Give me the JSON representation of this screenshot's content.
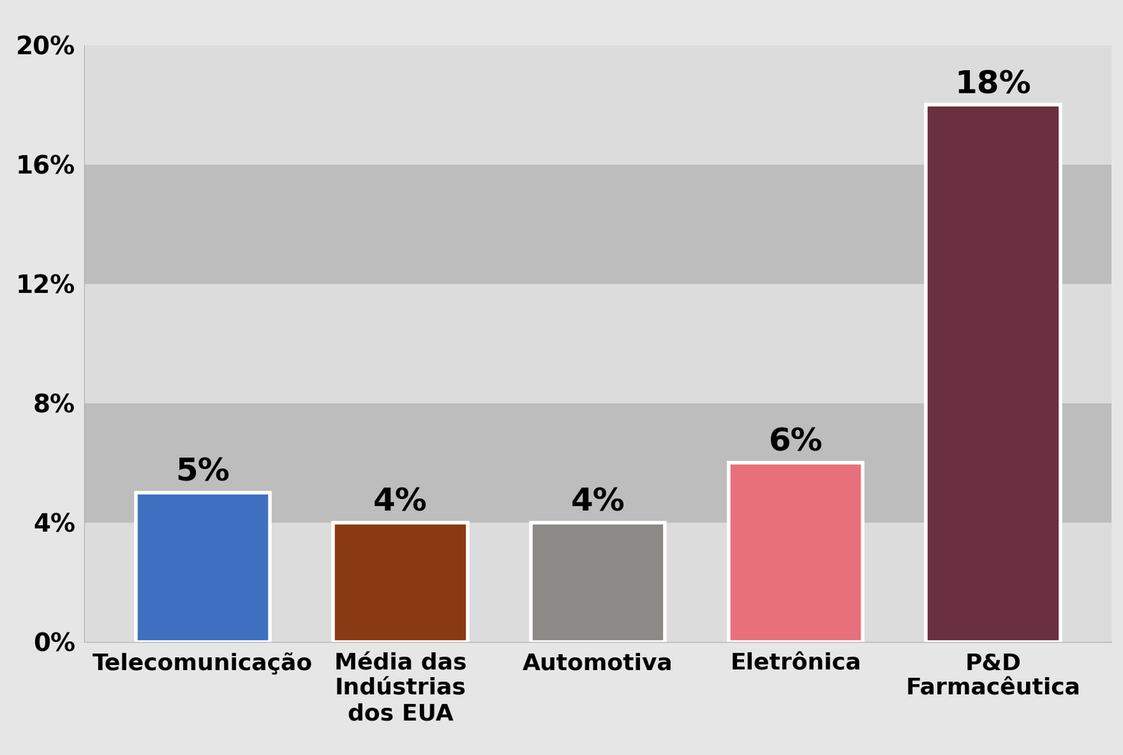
{
  "chart_data": {
    "type": "bar",
    "categories": [
      "Telecomunicação",
      "Média das Indústrias dos EUA",
      "Automotiva",
      "Eletrônica",
      "P&D Farmacêutica"
    ],
    "values": [
      5,
      4,
      4,
      6,
      18
    ],
    "value_labels": [
      "5%",
      "4%",
      "4%",
      "6%",
      "18%"
    ],
    "data_labels": true,
    "colors": [
      "#3f6fc0",
      "#8a3a12",
      "#8c8a86",
      "#e8707a",
      "#6a3040"
    ],
    "ylim": [
      0,
      20
    ],
    "yticks": [
      {
        "value": 0,
        "label": "0%"
      },
      {
        "value": 4,
        "label": "4%"
      },
      {
        "value": 8,
        "label": "8%"
      },
      {
        "value": 12,
        "label": "12%"
      },
      {
        "value": 16,
        "label": "16%"
      },
      {
        "value": 20,
        "label": "20%"
      }
    ],
    "grid": true
  }
}
